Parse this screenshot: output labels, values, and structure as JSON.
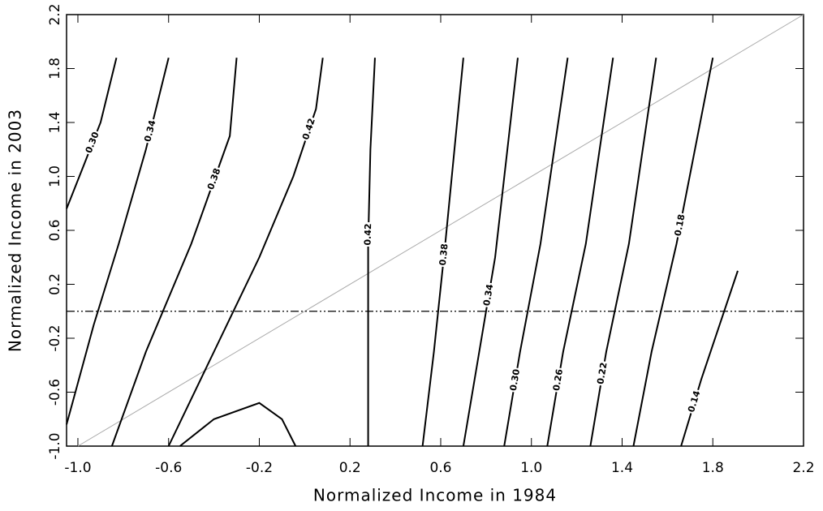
{
  "chart_data": {
    "type": "contour",
    "xlabel": "Normalized Income in 1984",
    "ylabel": "Normalized Income in 2003",
    "xlim": [
      -1.05,
      2.2
    ],
    "ylim": [
      -1,
      2.2
    ],
    "xticks": [
      {
        "value": -1,
        "label": "-1.0"
      },
      -0.6,
      -0.2,
      0.2,
      0.6,
      {
        "value": 1,
        "label": "1.0"
      },
      1.4,
      1.8,
      2.2
    ],
    "yticks": [
      {
        "value": -1,
        "label": "-1.0"
      },
      -0.6,
      -0.2,
      0.2,
      0.6,
      {
        "value": 1,
        "label": "1.0"
      },
      1.4,
      1.8,
      2.2
    ],
    "hline": 0,
    "diagonal": true,
    "color": "#000000",
    "contours": [
      {
        "label": "0.30",
        "x": [
          -1.05,
          -0.97,
          -0.9,
          -0.83
        ],
        "y": [
          0.76,
          1.1,
          1.4,
          1.88
        ]
      },
      {
        "label": "0.34",
        "x": [
          -1.05,
          -0.93,
          -0.82,
          -0.7,
          -0.6
        ],
        "y": [
          -0.84,
          -0.1,
          0.5,
          1.2,
          1.88
        ]
      },
      {
        "label": "0.38",
        "x": [
          -0.85,
          -0.7,
          -0.5,
          -0.33,
          -0.3
        ],
        "y": [
          -1,
          -0.3,
          0.5,
          1.3,
          1.88
        ]
      },
      {
        "label": "0.42",
        "x": [
          -0.6,
          -0.4,
          -0.2,
          -0.05,
          0.05,
          0.08
        ],
        "y": [
          -1,
          -0.3,
          0.4,
          1.0,
          1.5,
          1.88
        ]
      },
      {
        "label": "0.42",
        "x": [
          0.28,
          0.28,
          0.29,
          0.31
        ],
        "y": [
          -1,
          0.5,
          1.2,
          1.88
        ]
      },
      {
        "x": [
          -0.55,
          -0.4,
          -0.2,
          -0.1,
          -0.04
        ],
        "y": [
          -1,
          -0.8,
          -0.68,
          -0.8,
          -1
        ]
      },
      {
        "label": "0.38",
        "x": [
          0.52,
          0.57,
          0.62,
          0.7
        ],
        "y": [
          -1,
          -0.3,
          0.5,
          1.88
        ]
      },
      {
        "label": "0.34",
        "x": [
          0.7,
          0.77,
          0.84,
          0.94
        ],
        "y": [
          -1,
          -0.3,
          0.4,
          1.88
        ]
      },
      {
        "label": "0.30",
        "x": [
          0.88,
          0.95,
          1.04,
          1.16
        ],
        "y": [
          -1,
          -0.3,
          0.5,
          1.88
        ]
      },
      {
        "label": "0.26",
        "x": [
          1.07,
          1.14,
          1.24,
          1.36
        ],
        "y": [
          -1,
          -0.3,
          0.5,
          1.88
        ]
      },
      {
        "label": "0.22",
        "x": [
          1.26,
          1.33,
          1.43,
          1.55
        ],
        "y": [
          -1,
          -0.3,
          0.5,
          1.88
        ]
      },
      {
        "label": "0.18",
        "x": [
          1.45,
          1.53,
          1.64,
          1.8
        ],
        "y": [
          -1,
          -0.3,
          0.5,
          1.88
        ]
      },
      {
        "label": "0.14",
        "x": [
          1.66,
          1.75,
          1.85,
          1.91
        ],
        "y": [
          -1,
          -0.5,
          0,
          0.3
        ]
      }
    ]
  }
}
